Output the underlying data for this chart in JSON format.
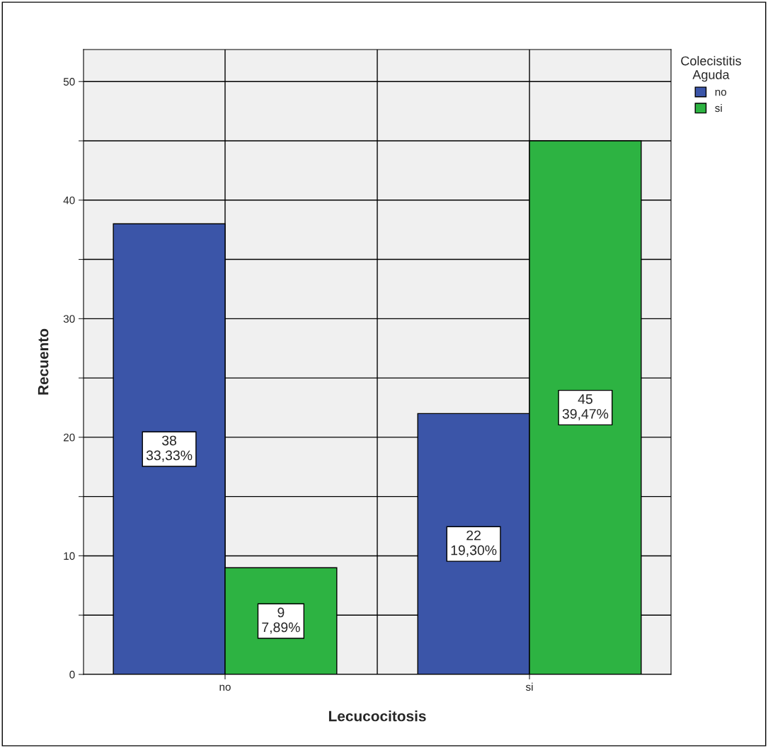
{
  "chart_data": {
    "type": "bar",
    "xlabel": "Lecucocitosis",
    "ylabel": "Recuento",
    "legend_title": "Colecistitis\nAguda",
    "categories": [
      "no",
      "si"
    ],
    "series": [
      {
        "name": "no",
        "color": "#3b55a8",
        "values": [
          38,
          22
        ],
        "value_labels": [
          "38\n33,33%",
          "22\n19,30%"
        ]
      },
      {
        "name": "si",
        "color": "#2db342",
        "values": [
          9,
          45
        ],
        "value_labels": [
          "9\n7,89%",
          "45\n39,47%"
        ]
      }
    ],
    "ylim": [
      0,
      52.7
    ],
    "yticks": [
      0,
      {
        "value": 5,
        "label": null
      },
      10,
      {
        "value": 15,
        "label": null
      },
      20,
      {
        "value": 25,
        "label": null
      },
      30,
      {
        "value": 35,
        "label": null
      },
      40,
      {
        "value": 45,
        "label": null
      },
      50
    ],
    "grid": true,
    "legend": "top right"
  }
}
